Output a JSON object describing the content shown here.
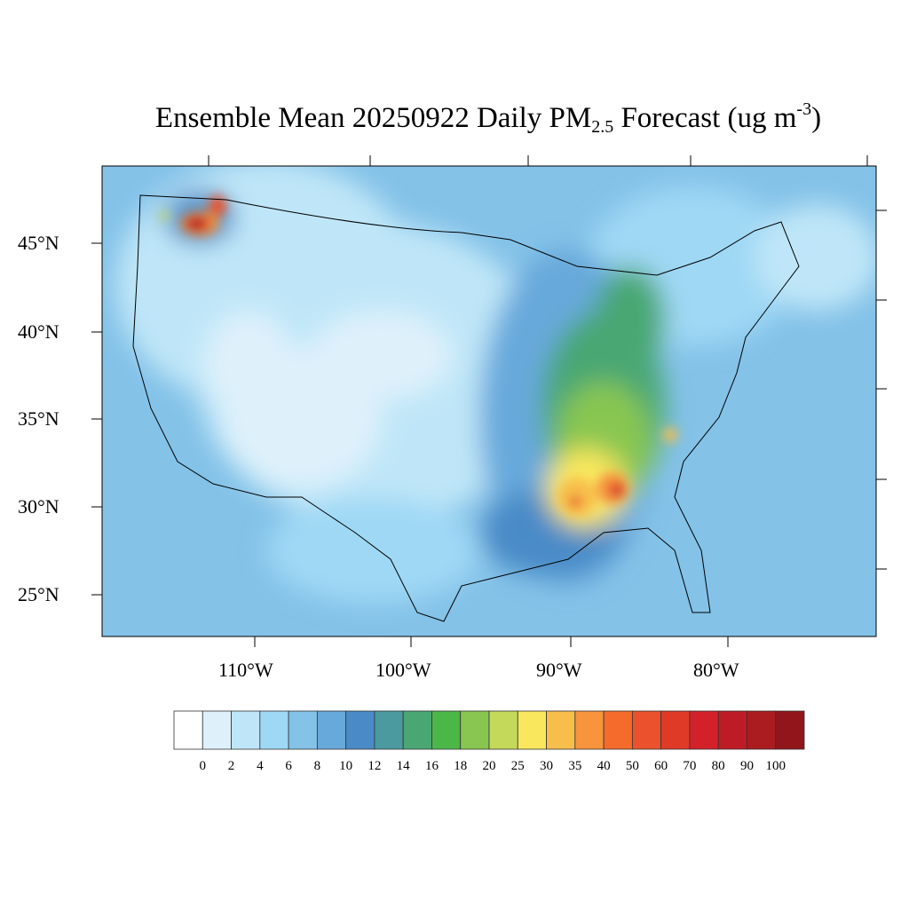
{
  "title": {
    "main": "Ensemble Mean 20250922 Daily PM",
    "sub": "2.5",
    "after": " Forecast (ug m",
    "sup": "-3",
    "close": ")"
  },
  "lon_labels": [
    "110°W",
    "100°W",
    "90°W",
    "80°W"
  ],
  "lat_labels": [
    "45°N",
    "40°N",
    "35°N",
    "30°N",
    "25°N"
  ],
  "colorbar": {
    "levels": [
      "0",
      "2",
      "4",
      "6",
      "8",
      "10",
      "12",
      "14",
      "16",
      "18",
      "20",
      "25",
      "30",
      "35",
      "40",
      "50",
      "60",
      "70",
      "80",
      "90",
      "100"
    ],
    "colors": [
      "#ffffff",
      "#def1fb",
      "#bfe6f8",
      "#9fd8f5",
      "#84c2e8",
      "#68a9db",
      "#4a8bc7",
      "#4a9aa0",
      "#4aa773",
      "#4cb749",
      "#88c651",
      "#c4d95a",
      "#f9e75e",
      "#f8be4c",
      "#f7943c",
      "#f46b2c",
      "#e9522c",
      "#df3a28",
      "#d22129",
      "#bd1c26",
      "#ab1c20",
      "#91161c"
    ]
  }
}
